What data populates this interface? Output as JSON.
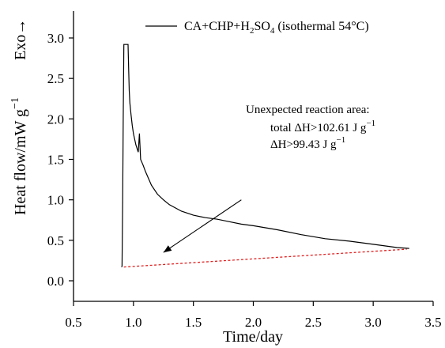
{
  "chart_data": {
    "type": "line",
    "xlabel": "Time/day",
    "ylabel_main": "Heat flow/mW g",
    "ylabel_sup": "−1",
    "exo_label": "Exo→",
    "xlim": [
      0.5,
      3.5
    ],
    "ylim": [
      0.0,
      3.0
    ],
    "x_ticks": [
      "0.5",
      "1.0",
      "1.5",
      "2.0",
      "2.5",
      "3.0",
      "3.5"
    ],
    "y_ticks": [
      "0.0",
      "0.5",
      "1.0",
      "1.5",
      "2.0",
      "2.5",
      "3.0"
    ],
    "grid": false,
    "legend": {
      "position": "top-right",
      "parts": [
        "CA+CHP+H",
        "2",
        "SO",
        "4",
        " (isothermal 54°C)"
      ]
    },
    "series": [
      {
        "name": "CA+CHP+H2SO4 (isothermal 54°C)",
        "color": "#000000",
        "x": [
          0.9,
          0.905,
          0.91,
          0.915,
          0.92,
          0.93,
          0.94,
          0.95,
          0.955,
          0.96,
          0.965,
          0.97,
          0.98,
          0.99,
          1.0,
          1.02,
          1.04,
          1.05,
          1.06,
          1.08,
          1.1,
          1.15,
          1.2,
          1.25,
          1.3,
          1.4,
          1.5,
          1.6,
          1.7,
          1.8,
          1.9,
          2.0,
          2.2,
          2.4,
          2.6,
          2.8,
          3.0,
          3.2,
          3.3
        ],
        "y": [
          0.17,
          0.18,
          1.0,
          2.0,
          2.92,
          2.92,
          2.92,
          2.92,
          2.92,
          2.6,
          2.35,
          2.2,
          2.05,
          1.92,
          1.82,
          1.68,
          1.59,
          1.82,
          1.5,
          1.43,
          1.35,
          1.18,
          1.07,
          1.0,
          0.94,
          0.86,
          0.81,
          0.78,
          0.76,
          0.73,
          0.7,
          0.68,
          0.63,
          0.57,
          0.52,
          0.49,
          0.45,
          0.41,
          0.4
        ]
      },
      {
        "name": "baseline",
        "color": "#e02020",
        "dashed": true,
        "x": [
          0.92,
          3.28
        ],
        "y": [
          0.17,
          0.39
        ]
      }
    ],
    "annotation": {
      "title": "Unexpected reaction area:",
      "line1": "total ΔH>102.61 J g",
      "line1_sup": "−1",
      "line2": "ΔH>99.43 J g",
      "line2_sup": "−1"
    },
    "arrow": {
      "from": [
        1.9,
        1.0
      ],
      "to": [
        1.25,
        0.35
      ]
    }
  }
}
